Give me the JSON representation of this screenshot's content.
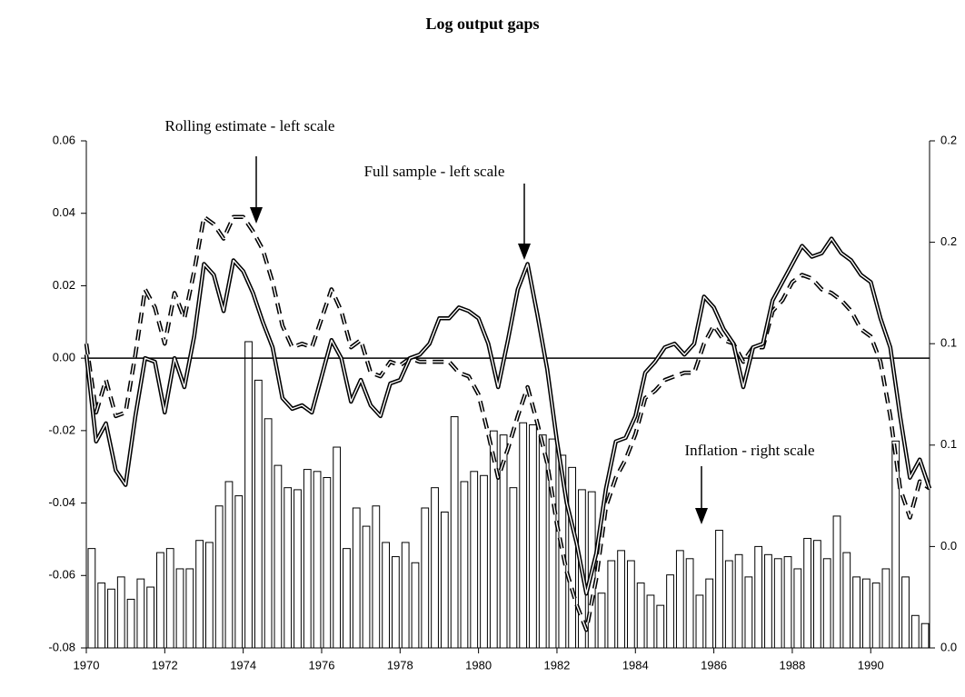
{
  "chart_data": {
    "type": "combo",
    "title": "Log output gaps",
    "x": [
      1970,
      1970.25,
      1970.5,
      1970.75,
      1971,
      1971.25,
      1971.5,
      1971.75,
      1972,
      1972.25,
      1972.5,
      1972.75,
      1973,
      1973.25,
      1973.5,
      1973.75,
      1974,
      1974.25,
      1974.5,
      1974.75,
      1975,
      1975.25,
      1975.5,
      1975.75,
      1976,
      1976.25,
      1976.5,
      1976.75,
      1977,
      1977.25,
      1977.5,
      1977.75,
      1978,
      1978.25,
      1978.5,
      1978.75,
      1979,
      1979.25,
      1979.5,
      1979.75,
      1980,
      1980.25,
      1980.5,
      1980.75,
      1981,
      1981.25,
      1981.5,
      1981.75,
      1982,
      1982.25,
      1982.5,
      1982.75,
      1983,
      1983.25,
      1983.5,
      1983.75,
      1984,
      1984.25,
      1984.5,
      1984.75,
      1985,
      1985.25,
      1985.5,
      1985.75,
      1986,
      1986.25,
      1986.5,
      1986.75,
      1987,
      1987.25,
      1987.5,
      1987.75,
      1988,
      1988.25,
      1988.5,
      1988.75,
      1989,
      1989.25,
      1989.5,
      1989.75,
      1990,
      1990.25,
      1990.5,
      1990.75,
      1991,
      1991.25,
      1991.5
    ],
    "series": [
      {
        "name": "Inflation - right scale",
        "type": "bar",
        "axis": "y2",
        "color": "#ffffff",
        "values": [
          0.049,
          0.032,
          0.029,
          0.035,
          0.024,
          0.034,
          0.03,
          0.047,
          0.049,
          0.039,
          0.039,
          0.053,
          0.052,
          0.07,
          0.082,
          0.075,
          0.151,
          0.132,
          0.113,
          0.09,
          0.079,
          0.078,
          0.088,
          0.087,
          0.084,
          0.099,
          0.049,
          0.069,
          0.06,
          0.07,
          0.052,
          0.045,
          0.052,
          0.042,
          0.069,
          0.079,
          0.067,
          0.114,
          0.082,
          0.087,
          0.085,
          0.107,
          0.105,
          0.079,
          0.111,
          0.11,
          0.105,
          0.103,
          0.095,
          0.089,
          0.078,
          0.077,
          0.027,
          0.043,
          0.048,
          0.043,
          0.032,
          0.026,
          0.021,
          0.036,
          0.048,
          0.044,
          0.026,
          0.034,
          0.058,
          0.043,
          0.046,
          0.035,
          0.05,
          0.046,
          0.044,
          0.045,
          0.039,
          0.054,
          0.053,
          0.044,
          0.065,
          0.047,
          0.035,
          0.034,
          0.032,
          0.039,
          0.102,
          0.035,
          0.016,
          0.012,
          null
        ]
      },
      {
        "name": "Rolling estimate - left scale",
        "type": "line",
        "dashed": true,
        "color": "#000000",
        "values": [
          0.004,
          -0.015,
          -0.006,
          -0.016,
          -0.015,
          0.001,
          0.019,
          0.014,
          0.004,
          0.018,
          0.011,
          0.024,
          0.039,
          0.037,
          0.033,
          0.039,
          0.039,
          0.035,
          0.03,
          0.021,
          0.009,
          0.003,
          0.004,
          0.003,
          0.011,
          0.019,
          0.013,
          0.003,
          0.005,
          -0.004,
          -0.005,
          -0.001,
          -0.002,
          0.0,
          -0.001,
          -0.001,
          -0.001,
          -0.001,
          -0.004,
          -0.005,
          -0.01,
          -0.021,
          -0.033,
          -0.025,
          -0.016,
          -0.008,
          -0.018,
          -0.029,
          -0.046,
          -0.059,
          -0.068,
          -0.075,
          -0.061,
          -0.041,
          -0.033,
          -0.028,
          -0.021,
          -0.011,
          -0.009,
          -0.006,
          -0.005,
          -0.004,
          -0.004,
          0.004,
          0.009,
          0.005,
          0.004,
          -0.001,
          0.003,
          0.003,
          0.013,
          0.016,
          0.021,
          0.023,
          0.022,
          0.019,
          0.018,
          0.016,
          0.013,
          0.008,
          0.006,
          -0.001,
          -0.016,
          -0.036,
          -0.044,
          -0.034,
          -0.036
        ]
      },
      {
        "name": "Full sample - left scale",
        "type": "line",
        "dashed": false,
        "color": "#000000",
        "values": [
          0.001,
          -0.023,
          -0.018,
          -0.031,
          -0.035,
          -0.016,
          0.0,
          -0.001,
          -0.015,
          0.0,
          -0.008,
          0.006,
          0.026,
          0.023,
          0.013,
          0.027,
          0.024,
          0.018,
          0.01,
          0.003,
          -0.011,
          -0.014,
          -0.013,
          -0.015,
          -0.005,
          0.005,
          0.0,
          -0.012,
          -0.006,
          -0.013,
          -0.016,
          -0.007,
          -0.006,
          0.0,
          0.001,
          0.004,
          0.011,
          0.011,
          0.014,
          0.013,
          0.011,
          0.004,
          -0.008,
          0.005,
          0.019,
          0.026,
          0.012,
          -0.003,
          -0.023,
          -0.04,
          -0.051,
          -0.065,
          -0.054,
          -0.036,
          -0.023,
          -0.022,
          -0.016,
          -0.004,
          -0.001,
          0.003,
          0.004,
          0.001,
          0.004,
          0.017,
          0.014,
          0.008,
          0.004,
          -0.008,
          0.003,
          0.004,
          0.016,
          0.021,
          0.026,
          0.031,
          0.028,
          0.029,
          0.033,
          0.029,
          0.027,
          0.023,
          0.021,
          0.011,
          0.003,
          -0.016,
          -0.033,
          -0.028,
          -0.036
        ]
      }
    ],
    "xlim": [
      1970,
      1991.5
    ],
    "xticks": [
      1970,
      1972,
      1974,
      1976,
      1978,
      1980,
      1982,
      1984,
      1986,
      1988,
      1990
    ],
    "ylim": [
      -0.08,
      0.06
    ],
    "yticks": [
      0.06,
      0.04,
      0.02,
      {
        "value": 0,
        "label": "0.00"
      },
      -0.02,
      -0.04,
      -0.06,
      -0.08
    ],
    "y2lim": [
      0,
      0.25
    ],
    "y2ticks": [
      {
        "value": 0.25,
        "label": "0.2"
      },
      0.2,
      {
        "value": 0.15,
        "label": "0.1"
      },
      0.1,
      {
        "value": 0.05,
        "label": "0.0"
      },
      {
        "value": 0,
        "label": "0.0"
      }
    ]
  }
}
